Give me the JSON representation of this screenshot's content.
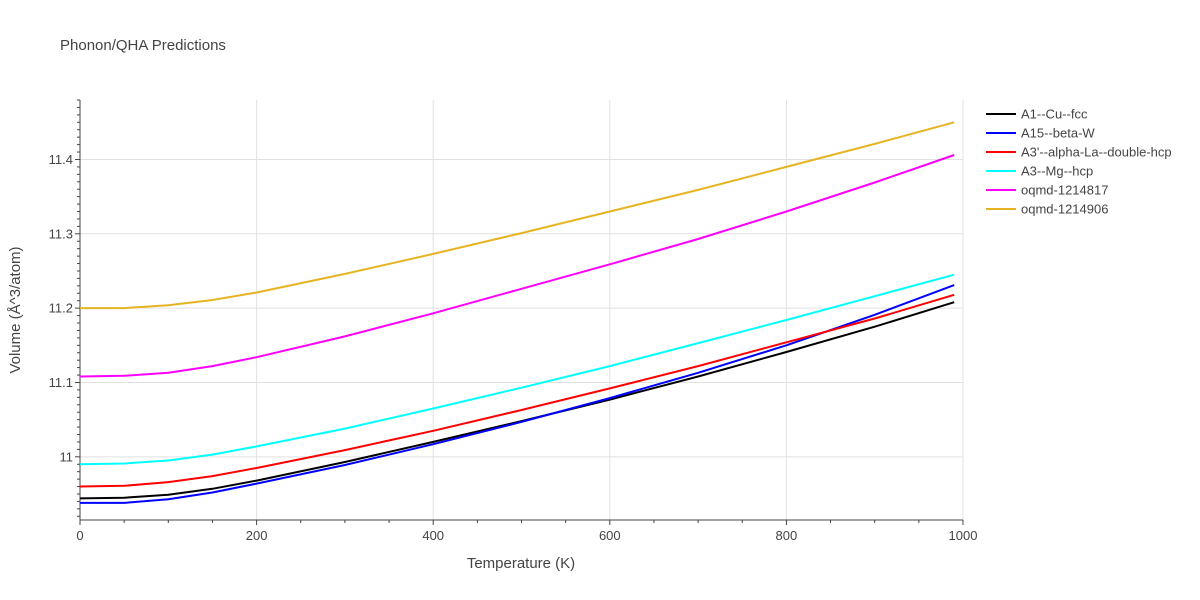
{
  "chart_data": {
    "type": "line",
    "title": "Phonon/QHA Predictions",
    "xlabel": "Temperature (K)",
    "ylabel": "Volume (Å^3/atom)",
    "xlim": [
      0,
      1000
    ],
    "ylim": [
      10.915,
      11.48
    ],
    "xticks": [
      0,
      200,
      400,
      600,
      800,
      1000
    ],
    "xtick_labels": [
      "0",
      "200",
      "400",
      "600",
      "800",
      "1000"
    ],
    "yticks": [
      11,
      11.1,
      11.2,
      11.3,
      11.4
    ],
    "ytick_labels": [
      "11",
      "11.1",
      "11.2",
      "11.3",
      "11.4"
    ],
    "grid": true,
    "legend_position": "right",
    "x": [
      0,
      50,
      100,
      150,
      200,
      300,
      400,
      500,
      600,
      700,
      800,
      900,
      990
    ],
    "series": [
      {
        "name": "A1--Cu--fcc",
        "color": "#000000",
        "values": [
          10.944,
          10.945,
          10.949,
          10.957,
          10.968,
          10.993,
          11.02,
          11.048,
          11.077,
          11.108,
          11.141,
          11.175,
          11.208
        ]
      },
      {
        "name": "A15--beta-W",
        "color": "#0000ff",
        "values": [
          10.938,
          10.938,
          10.943,
          10.952,
          10.964,
          10.989,
          11.017,
          11.047,
          11.079,
          11.113,
          11.15,
          11.191,
          11.231
        ]
      },
      {
        "name": "A3'--alpha-La--double-hcp",
        "color": "#ff0000",
        "values": [
          10.96,
          10.961,
          10.966,
          10.974,
          10.985,
          11.009,
          11.035,
          11.063,
          11.092,
          11.122,
          11.154,
          11.186,
          11.218
        ]
      },
      {
        "name": "A3--Mg--hcp",
        "color": "#00ffff",
        "values": [
          10.99,
          10.991,
          10.995,
          11.003,
          11.014,
          11.038,
          11.065,
          11.093,
          11.122,
          11.153,
          11.184,
          11.216,
          11.245
        ]
      },
      {
        "name": "oqmd-1214817",
        "color": "#ff00ff",
        "values": [
          11.108,
          11.109,
          11.113,
          11.122,
          11.134,
          11.162,
          11.193,
          11.226,
          11.259,
          11.293,
          11.33,
          11.369,
          11.406
        ]
      },
      {
        "name": "oqmd-1214906",
        "color": "#e6b422",
        "values": [
          11.2,
          11.2,
          11.204,
          11.211,
          11.221,
          11.246,
          11.273,
          11.301,
          11.33,
          11.359,
          11.39,
          11.421,
          11.45
        ]
      }
    ]
  }
}
